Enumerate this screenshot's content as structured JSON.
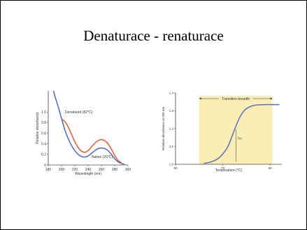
{
  "slide": {
    "title": "Denaturace - renaturace"
  },
  "chart_data": [
    {
      "type": "line",
      "xlabel": "Wavelength (nm)",
      "ylabel": "Relative absorbance",
      "xlim": [
        180,
        300
      ],
      "ylim": [
        0,
        1.4
      ],
      "x_ticks": [
        "180",
        "200",
        "220",
        "240",
        "260",
        "280",
        "300"
      ],
      "y_ticks": [
        "0",
        "0.2",
        "0.4",
        "0.6",
        "0.8",
        "1.0"
      ],
      "grid": false,
      "colors": {
        "denatured": "#e8633a",
        "native": "#5a6fc0",
        "axis": "#444444"
      },
      "series": [
        {
          "name": "Denatured (82°C)",
          "x": [
            200,
            205,
            210,
            215,
            220,
            225,
            230,
            235,
            240,
            245,
            250,
            255,
            260,
            265,
            270,
            275,
            280,
            285,
            290
          ],
          "y": [
            0.87,
            0.82,
            0.72,
            0.58,
            0.44,
            0.33,
            0.26,
            0.24,
            0.27,
            0.34,
            0.41,
            0.46,
            0.48,
            0.46,
            0.4,
            0.3,
            0.18,
            0.09,
            0.04
          ]
        },
        {
          "name": "Native (25°C)",
          "x": [
            188,
            190,
            195,
            200,
            205,
            210,
            215,
            220,
            225,
            230,
            235,
            240,
            245,
            250,
            255,
            260,
            265,
            270,
            275,
            280,
            285,
            290,
            295
          ],
          "y": [
            1.4,
            1.3,
            1.1,
            0.88,
            0.66,
            0.5,
            0.37,
            0.27,
            0.2,
            0.16,
            0.15,
            0.17,
            0.22,
            0.27,
            0.31,
            0.32,
            0.31,
            0.27,
            0.2,
            0.12,
            0.06,
            0.03,
            0.01
          ]
        }
      ]
    },
    {
      "type": "line",
      "xlabel": "Temperature (°C)",
      "ylabel": "Relative absorbance at 260 nm",
      "xlim": [
        50,
        95
      ],
      "ylim": [
        1.0,
        1.4
      ],
      "x_ticks": [
        "50",
        "70",
        "90"
      ],
      "y_ticks": [
        "1.0",
        "1.1",
        "1.2",
        "1.3",
        "1.4"
      ],
      "grid": false,
      "annotations": {
        "band": "Transition breadth",
        "midpoint": "Tm"
      },
      "band_range": [
        60,
        91
      ],
      "band_color": "#fbeeb4",
      "colors": {
        "curve": "#5a6fc0",
        "axis": "#444444",
        "annotation": "#333333"
      },
      "series": [
        {
          "x": [
            62,
            64,
            66,
            68,
            70,
            72,
            73,
            74,
            75,
            76,
            77,
            78,
            79,
            80,
            82,
            84,
            86,
            88,
            90,
            94
          ],
          "y": [
            1.005,
            1.01,
            1.018,
            1.032,
            1.058,
            1.095,
            1.125,
            1.16,
            1.195,
            1.228,
            1.258,
            1.282,
            1.3,
            1.312,
            1.326,
            1.332,
            1.334,
            1.335,
            1.335,
            1.335
          ]
        }
      ]
    }
  ]
}
